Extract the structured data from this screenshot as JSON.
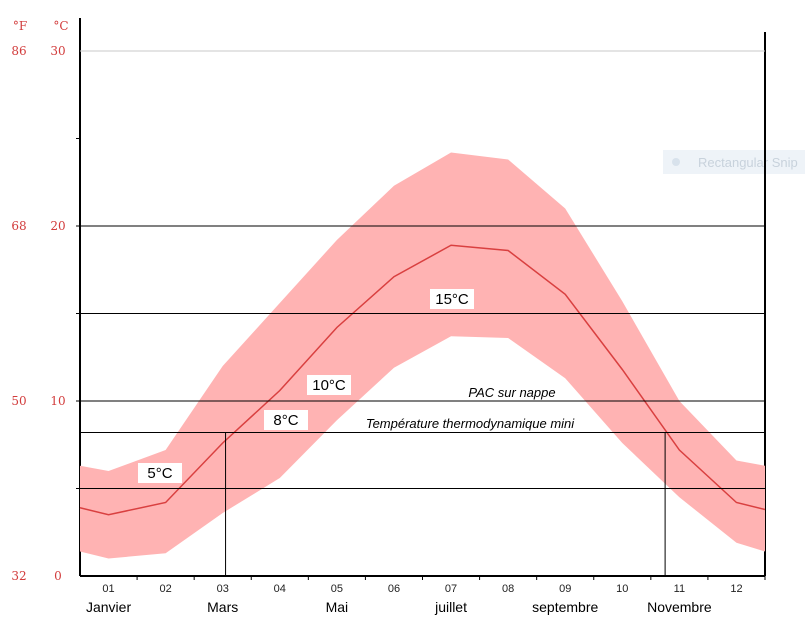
{
  "chart_data": {
    "type": "area",
    "title": "",
    "xlabel": "",
    "ylabel": "",
    "unit_labels": {
      "fahrenheit": "°F",
      "celsius": "°C"
    },
    "y_ticks_celsius": [
      "30",
      "20",
      "10",
      "0"
    ],
    "y_ticks_fahrenheit": [
      "86",
      "68",
      "50",
      "32"
    ],
    "ylim": [
      0,
      30
    ],
    "grid": true,
    "x": [
      0.5,
      1,
      2,
      3,
      4,
      5,
      6,
      7,
      8,
      9,
      10,
      11,
      12,
      12.5
    ],
    "month_numbers": [
      "01",
      "02",
      "03",
      "04",
      "05",
      "06",
      "07",
      "08",
      "09",
      "10",
      "11",
      "12"
    ],
    "month_names": [
      {
        "label": "Janvier",
        "month": 1
      },
      {
        "label": "Mars",
        "month": 3
      },
      {
        "label": "Mai",
        "month": 5
      },
      {
        "label": "juillet",
        "month": 7
      },
      {
        "label": "septembre",
        "month": 9
      },
      {
        "label": "Novembre",
        "month": 11
      }
    ],
    "series": [
      {
        "values": [
          3.9,
          3.5,
          4.2,
          7.6,
          10.6,
          14.2,
          17.1,
          18.9,
          18.6,
          16.1,
          11.8,
          7.2,
          4.2,
          3.8
        ]
      },
      {
        "role": "max",
        "values": [
          6.3,
          6.0,
          7.2,
          12.0,
          15.6,
          19.2,
          22.3,
          24.2,
          23.8,
          21.0,
          15.7,
          10.0,
          6.6,
          6.3
        ]
      },
      {
        "role": "min",
        "values": [
          1.4,
          1.0,
          1.3,
          3.6,
          5.6,
          8.9,
          11.9,
          13.7,
          13.6,
          11.3,
          7.6,
          4.5,
          1.9,
          1.4
        ]
      }
    ],
    "band_color": "#ffb3b3",
    "line_color": "#d94040",
    "reference_lines": [
      {
        "value": 20,
        "label": ""
      },
      {
        "value": 15,
        "label": "15°C"
      },
      {
        "value": 10,
        "label": "PAC sur nappe"
      },
      {
        "value": 8.2,
        "label": "Température thermodynamique mini"
      },
      {
        "value": 5,
        "label": "5°C"
      }
    ],
    "point_labels": [
      {
        "text": "10°C",
        "x": 4.8,
        "y": 10.6
      },
      {
        "text": "8°C",
        "x": 3.9,
        "y": 8.6
      }
    ],
    "vertical_markers": [
      3.05,
      10.75
    ]
  },
  "overlay": {
    "ghost_text": "Rectangular Snip"
  }
}
